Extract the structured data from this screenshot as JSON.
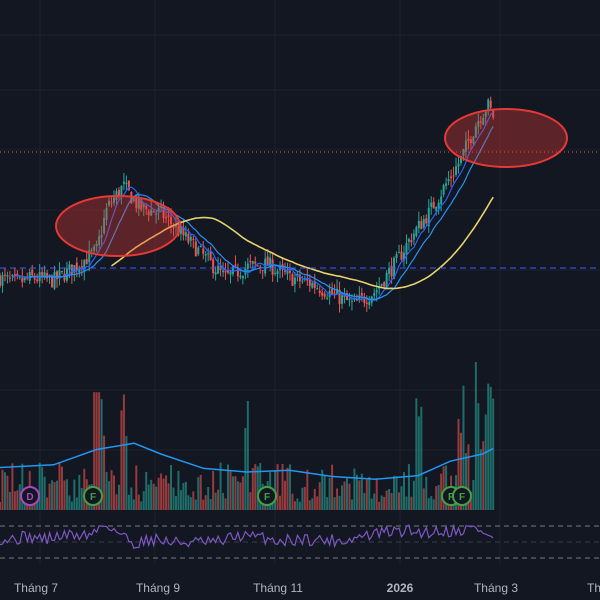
{
  "colors": {
    "background": "#131722",
    "grid": "#1e222d",
    "up": "#26a69a",
    "down": "#ef5350",
    "ma_fast": "#2962ff",
    "ma_slow": "#2196f3",
    "ma_long": "#e6d36a",
    "volume_ma": "#2196f3",
    "rsi": "#7e57c2",
    "dashed_level": "#3d5afe",
    "dotted_price": "#ef5350",
    "ellipse_stroke": "#e53935",
    "ellipse_fill": "rgba(229,57,53,0.35)",
    "dividend_badge": "#ab47bc",
    "financial_badge": "#43a047"
  },
  "x_axis_labels": [
    {
      "text": "Tháng 7",
      "bold": false
    },
    {
      "text": "Tháng 9",
      "bold": false
    },
    {
      "text": "Tháng 11",
      "bold": false
    },
    {
      "text": "2026",
      "bold": true
    },
    {
      "text": "Tháng 3",
      "bold": false
    },
    {
      "text": "Th",
      "bold": false
    }
  ],
  "event_markers": [
    {
      "label": "D",
      "type": "dividend"
    },
    {
      "label": "F",
      "type": "financial"
    },
    {
      "label": "F",
      "type": "financial"
    },
    {
      "label": "F",
      "type": "financial"
    },
    {
      "label": "F",
      "type": "financial"
    }
  ],
  "chart_data": {
    "type": "candlestick",
    "x": [
      "Tháng 7",
      "Tháng 9",
      "Tháng 11",
      "2026",
      "Tháng 3"
    ],
    "close_path": [
      [
        0,
        0.36
      ],
      [
        0.03,
        0.34
      ],
      [
        0.06,
        0.36
      ],
      [
        0.1,
        0.35
      ],
      [
        0.14,
        0.4
      ],
      [
        0.18,
        0.46
      ],
      [
        0.2,
        0.62
      ],
      [
        0.23,
        0.7
      ],
      [
        0.26,
        0.62
      ],
      [
        0.3,
        0.6
      ],
      [
        0.34,
        0.52
      ],
      [
        0.38,
        0.44
      ],
      [
        0.42,
        0.36
      ],
      [
        0.46,
        0.4
      ],
      [
        0.5,
        0.41
      ],
      [
        0.54,
        0.36
      ],
      [
        0.58,
        0.34
      ],
      [
        0.62,
        0.3
      ],
      [
        0.66,
        0.26
      ],
      [
        0.7,
        0.31
      ],
      [
        0.74,
        0.42
      ],
      [
        0.77,
        0.52
      ],
      [
        0.8,
        0.6
      ],
      [
        0.83,
        0.7
      ],
      [
        0.86,
        0.8
      ],
      [
        0.89,
        0.94
      ],
      [
        0.91,
        1.0
      ],
      [
        0.92,
        0.96
      ]
    ],
    "volume_ma_path": [
      [
        0,
        0.25
      ],
      [
        0.1,
        0.28
      ],
      [
        0.18,
        0.45
      ],
      [
        0.25,
        0.52
      ],
      [
        0.3,
        0.4
      ],
      [
        0.38,
        0.24
      ],
      [
        0.46,
        0.2
      ],
      [
        0.54,
        0.22
      ],
      [
        0.62,
        0.15
      ],
      [
        0.7,
        0.12
      ],
      [
        0.78,
        0.16
      ],
      [
        0.84,
        0.32
      ],
      [
        0.9,
        0.4
      ],
      [
        0.92,
        0.46
      ]
    ],
    "volume_spikes": [
      0.18,
      0.19,
      0.23,
      0.46,
      0.78,
      0.86,
      0.89,
      0.91,
      0.92
    ],
    "ellipse_annotations": 2,
    "indicators": [
      "MA fast",
      "MA medium",
      "MA long",
      "Volume",
      "Volume MA",
      "RSI"
    ]
  }
}
